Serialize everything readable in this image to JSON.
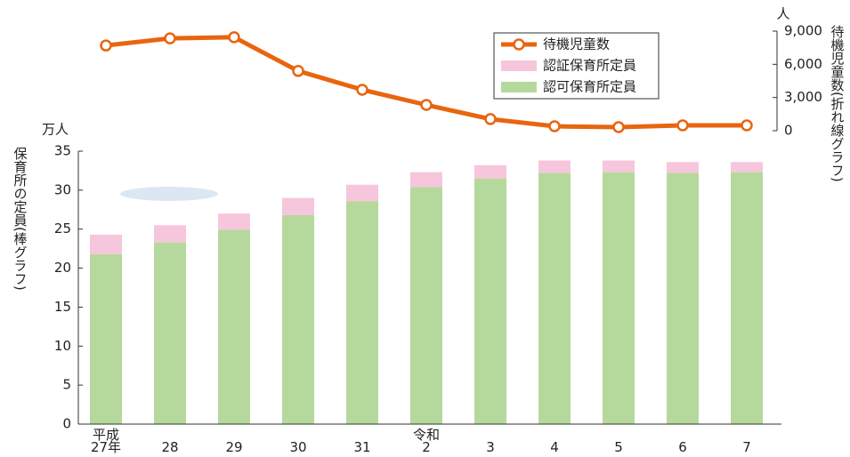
{
  "chart_data": {
    "type": "bar",
    "stacked": true,
    "y_unit": "万人",
    "y2_unit": "人",
    "ylabel": "保育所の定員(棒グラフ)",
    "y2label": "待機児童数(折れ線グラフ)",
    "categories": [
      "平成\n27年",
      "28",
      "29",
      "30",
      "31",
      "令和\n2",
      "3",
      "4",
      "5",
      "6",
      "7"
    ],
    "ylim": [
      0,
      35
    ],
    "yticks": [
      0,
      5,
      10,
      15,
      20,
      25,
      30,
      35
    ],
    "y2lim": [
      0,
      9000
    ],
    "y2ticks": [
      0,
      {
        "value": 3000,
        "label": "3,000"
      },
      {
        "value": 6000,
        "label": "6,000"
      },
      {
        "value": 9000,
        "label": "9,000"
      }
    ],
    "series": [
      {
        "name": "待機児童数",
        "type": "line",
        "axis": "y2",
        "color": "#e8650f",
        "values": [
          7700,
          8350,
          8450,
          5400,
          3700,
          2330,
          1050,
          400,
          320,
          480,
          480
        ]
      },
      {
        "name": "認証保育所定員",
        "color": "#f6c6dc",
        "values": [
          2.5,
          2.2,
          2.1,
          2.2,
          2.1,
          1.9,
          1.7,
          1.6,
          1.5,
          1.4,
          1.3
        ]
      },
      {
        "name": "認可保育所定員",
        "color": "#b5d99c",
        "values": [
          21.8,
          23.3,
          24.9,
          26.8,
          28.6,
          30.4,
          31.5,
          32.2,
          32.3,
          32.2,
          32.3
        ]
      }
    ]
  }
}
